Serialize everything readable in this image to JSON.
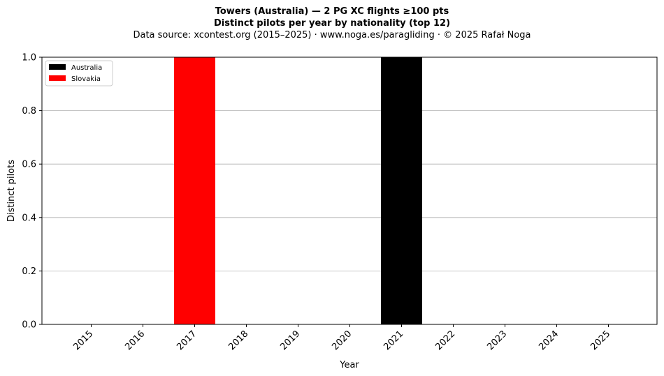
{
  "header": {
    "title": "Towers (Australia)  —  2 PG XC flights ≥100 pts",
    "subtitle": "Distinct pilots per year by nationality (top 12)",
    "source": "Data source: xcontest.org (2015–2025)  ·  www.noga.es/paragliding  ·  © 2025 Rafał Noga"
  },
  "chart_data": {
    "type": "bar",
    "stacked": true,
    "categories": [
      "2015",
      "2016",
      "2017",
      "2018",
      "2019",
      "2020",
      "2021",
      "2022",
      "2023",
      "2024",
      "2025"
    ],
    "series": [
      {
        "name": "Australia",
        "color": "#000000",
        "values": [
          0,
          0,
          0,
          0,
          0,
          0,
          1,
          0,
          0,
          0,
          0
        ]
      },
      {
        "name": "Slovakia",
        "color": "#ff0000",
        "values": [
          0,
          0,
          1,
          0,
          0,
          0,
          0,
          0,
          0,
          0,
          0
        ]
      }
    ],
    "xlabel": "Year",
    "ylabel": "Distinct pilots",
    "ylim": [
      0,
      1.0
    ],
    "yticks": [
      "0.0",
      "0.2",
      "0.4",
      "0.6",
      "0.8",
      "1.0"
    ],
    "grid": "y",
    "legend_position": "top-left"
  }
}
